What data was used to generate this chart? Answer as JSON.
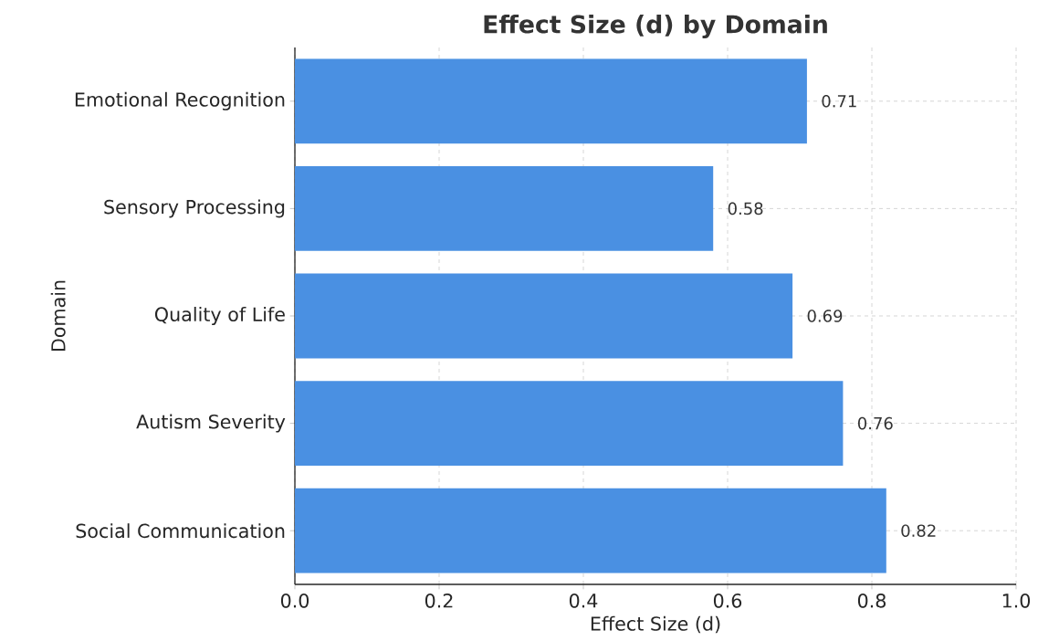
{
  "chart_data": {
    "type": "bar",
    "orientation": "horizontal",
    "title": "Effect Size (d) by Domain",
    "xlabel": "Effect Size (d)",
    "ylabel": "Domain",
    "categories": [
      "Emotional Recognition",
      "Sensory Processing",
      "Quality of Life",
      "Autism Severity",
      "Social Communication"
    ],
    "values": [
      0.71,
      0.58,
      0.69,
      0.76,
      0.82
    ],
    "color": "#4a90e2",
    "xlim": [
      0,
      1
    ],
    "xticks": [
      {
        "value": 0,
        "label": "0.0"
      },
      {
        "value": 0.2,
        "label": "0.2"
      },
      {
        "value": 0.4,
        "label": "0.4"
      },
      {
        "value": 0.6,
        "label": "0.6"
      },
      {
        "value": 0.8,
        "label": "0.8"
      },
      {
        "value": 1,
        "label": "1.0"
      }
    ],
    "grid": true,
    "data_labels": true
  }
}
